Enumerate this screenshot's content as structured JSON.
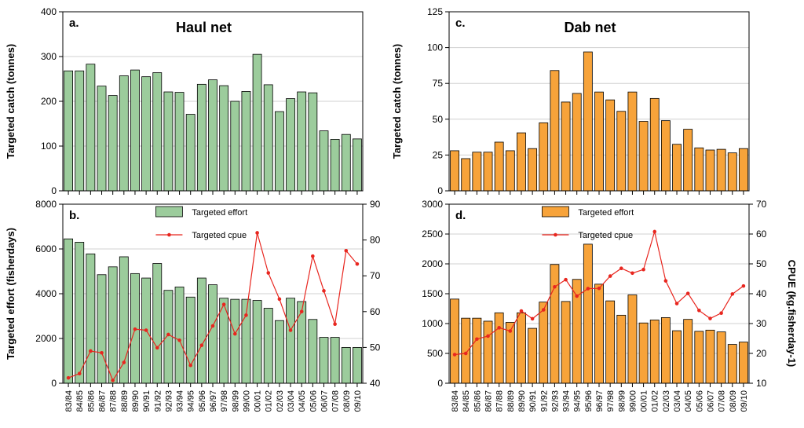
{
  "x_categories": [
    "83/84",
    "84/85",
    "85/86",
    "86/87",
    "87/88",
    "88/89",
    "89/90",
    "90/91",
    "91/92",
    "92/93",
    "93/94",
    "94/95",
    "95/96",
    "96/97",
    "97/98",
    "98/99",
    "99/00",
    "00/01",
    "01/02",
    "02/03",
    "03/04",
    "04/05",
    "05/06",
    "06/07",
    "07/08",
    "08/09",
    "09/10"
  ],
  "colors": {
    "green_bar": "#9ccc9c",
    "orange_bar": "#f7a33a",
    "cpue_line": "#e8261f",
    "grid": "#d0d0d0"
  },
  "chart_data": [
    {
      "type": "bar",
      "panel": "a.",
      "title": "Haul net",
      "ylabel": "Targeted catch (tonnes)",
      "ylim": [
        0,
        400
      ],
      "yticks": [
        0,
        100,
        200,
        300,
        400
      ],
      "grid": true,
      "series": [
        {
          "values": [
            268,
            268,
            283,
            234,
            213,
            257,
            270,
            255,
            264,
            221,
            220,
            171,
            238,
            248,
            235,
            200,
            222,
            305,
            237,
            177,
            206,
            221,
            219,
            134,
            115,
            126,
            116
          ]
        }
      ]
    },
    {
      "type": "bar",
      "panel": "b.",
      "ylabel": "Targeted effort (fisherdays)",
      "ylim": [
        0,
        8000
      ],
      "yticks": [
        0,
        2000,
        4000,
        6000,
        8000
      ],
      "y2lim": [
        40,
        90
      ],
      "y2ticks": [
        40,
        50,
        60,
        70,
        80,
        90
      ],
      "legend": "top-center",
      "grid": true,
      "series": [
        {
          "name": "Targeted effort",
          "values": [
            6450,
            6300,
            5780,
            4850,
            5200,
            5650,
            4900,
            4700,
            5350,
            4150,
            4300,
            3850,
            4700,
            4400,
            3800,
            3750,
            3750,
            3700,
            3350,
            2800,
            3800,
            3650,
            2850,
            2050,
            2050,
            1600,
            1600
          ]
        },
        {
          "name": "Targeted cpue",
          "type": "line",
          "axis": "right",
          "values": [
            41.5,
            42.7,
            49,
            48.5,
            40.8,
            45.8,
            55.1,
            54.8,
            49.9,
            53.6,
            52,
            45,
            50.6,
            56,
            62,
            53.8,
            59,
            82,
            70.8,
            63.5,
            54.8,
            60,
            75.5,
            65.8,
            56.5,
            77,
            73.3
          ]
        }
      ]
    },
    {
      "type": "bar",
      "panel": "c.",
      "title": "Dab net",
      "ylabel": "Targeted catch (tonnes)",
      "ylim": [
        0,
        125
      ],
      "yticks": [
        0,
        25,
        50,
        75,
        100,
        125
      ],
      "grid": true,
      "series": [
        {
          "values": [
            28,
            22.5,
            27,
            27,
            34,
            28,
            40.5,
            29.5,
            47.5,
            84,
            62,
            68,
            97,
            69,
            63.5,
            55.5,
            69,
            48.5,
            64.5,
            49,
            32.5,
            43,
            30,
            28.5,
            29,
            26.5,
            29.5
          ]
        }
      ]
    },
    {
      "type": "bar",
      "panel": "d.",
      "ylim": [
        0,
        3000
      ],
      "yticks": [
        0,
        500,
        1000,
        1500,
        2000,
        2500,
        3000
      ],
      "y2label": "CPUE (kg.fisherday-1)",
      "y2lim": [
        10,
        70
      ],
      "y2ticks": [
        10,
        20,
        30,
        40,
        50,
        60,
        70
      ],
      "legend": "top-center",
      "grid": true,
      "series": [
        {
          "name": "Targeted effort",
          "values": [
            1410,
            1090,
            1090,
            1040,
            1180,
            1020,
            1180,
            920,
            1360,
            1990,
            1370,
            1740,
            2330,
            1660,
            1380,
            1140,
            1480,
            1010,
            1060,
            1100,
            880,
            1070,
            870,
            890,
            860,
            650,
            690
          ]
        },
        {
          "name": "Targeted cpue",
          "type": "line",
          "axis": "right",
          "values": [
            19.6,
            20,
            24.8,
            25.8,
            28.6,
            27.5,
            34.2,
            31.6,
            34.6,
            42.3,
            44.7,
            39.2,
            41.7,
            41.8,
            45.9,
            48.5,
            46.9,
            48.1,
            60.8,
            44.3,
            36.7,
            40.1,
            34.4,
            31.7,
            33.5,
            39.9,
            42.6
          ]
        }
      ]
    }
  ]
}
